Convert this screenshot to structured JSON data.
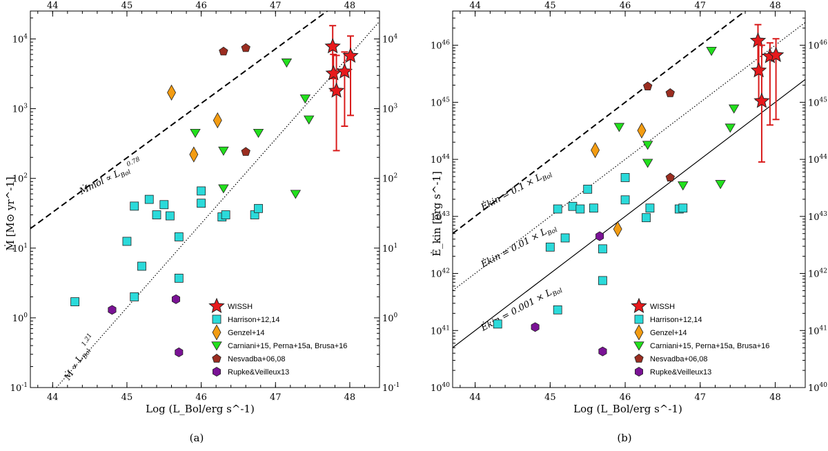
{
  "figure": {
    "caption_a": "(a)",
    "caption_b": "(b)"
  },
  "colors": {
    "wissh": "#e8191c",
    "harrison": "#2bdada",
    "genzel": "#f39c12",
    "carniani": "#22e01d",
    "nesvadba": "#9b2d20",
    "rupke": "#7a1295",
    "errorbar": "#d91b1b"
  },
  "chart_data": [
    {
      "type": "scatter",
      "panel": "a",
      "xlabel": "Log (L_Bol/erg s^-1)",
      "ylabel": "Ṁ [M⊙ yr^-1]",
      "xlim": [
        43.7,
        48.4
      ],
      "ylim_log10": [
        -1,
        4.4
      ],
      "yscale": "log",
      "xticks": [
        "44",
        "45",
        "46",
        "47",
        "48"
      ],
      "yticks": [
        "10^-1",
        "10^0",
        "10^1",
        "10^2",
        "10^3",
        "10^4"
      ],
      "lines": [
        {
          "name": "Ṁ_mol ∝ L_Bol^0.78",
          "style": "dashed",
          "x": [
            43.7,
            48.4
          ],
          "y_log": [
            1.28,
            4.95
          ]
        },
        {
          "name": "Ṁ ∝ L_Bol^1.21",
          "style": "dotted",
          "x": [
            44.05,
            48.4
          ],
          "y_log": [
            -1,
            4.25
          ]
        }
      ],
      "annotations": [
        {
          "text": "Ṁmol ∝ L",
          "sub": "Bol",
          "sup": "0.78"
        },
        {
          "text": "Ṁ ∝ L",
          "sub": "Bol",
          "sup": "1.21"
        }
      ],
      "series": [
        {
          "name": "WISSH",
          "marker": "star",
          "points": [
            [
              47.77,
              7800
            ],
            [
              47.78,
              3200
            ],
            [
              47.82,
              1800
            ],
            [
              47.93,
              3400
            ],
            [
              48.01,
              5700
            ]
          ],
          "yerr": [
            [
              2700,
              15500
            ],
            [
              1800,
              6000
            ],
            [
              250,
              5800
            ],
            [
              560,
              6500
            ],
            [
              800,
              11000
            ]
          ]
        },
        {
          "name": "Harrison+12,14",
          "marker": "square",
          "points": [
            [
              44.3,
              1.7
            ],
            [
              45.0,
              12.5
            ],
            [
              45.1,
              40
            ],
            [
              45.1,
              2.0
            ],
            [
              45.2,
              5.5
            ],
            [
              45.3,
              50
            ],
            [
              45.4,
              30
            ],
            [
              45.5,
              42
            ],
            [
              45.58,
              29
            ],
            [
              45.7,
              14.5
            ],
            [
              45.7,
              3.7
            ],
            [
              46.0,
              66
            ],
            [
              46.0,
              44
            ],
            [
              46.28,
              28
            ],
            [
              46.33,
              30
            ],
            [
              46.72,
              30
            ],
            [
              46.77,
              37
            ]
          ]
        },
        {
          "name": "Genzel+14",
          "marker": "diamond",
          "points": [
            [
              45.6,
              1700
            ],
            [
              45.9,
              220
            ],
            [
              46.22,
              680
            ]
          ]
        },
        {
          "name": "Carniani+15, Perna+15a, Brusa+16",
          "marker": "triangle-down",
          "points": [
            [
              45.92,
              450
            ],
            [
              46.3,
              250
            ],
            [
              46.3,
              72
            ],
            [
              46.77,
              450
            ],
            [
              47.15,
              4600
            ],
            [
              47.27,
              60
            ],
            [
              47.4,
              1400
            ],
            [
              47.45,
              700
            ]
          ]
        },
        {
          "name": "Nesvadba+06,08",
          "marker": "pentagon",
          "points": [
            [
              46.3,
              6600
            ],
            [
              46.6,
              7400
            ],
            [
              46.6,
              240
            ]
          ]
        },
        {
          "name": "Rupke&Veilleux13",
          "marker": "hexagon",
          "points": [
            [
              44.8,
              1.3
            ],
            [
              45.66,
              1.85
            ],
            [
              45.7,
              0.32
            ]
          ]
        }
      ]
    },
    {
      "type": "scatter",
      "panel": "b",
      "xlabel": "Log (L_Bol/erg s^-1)",
      "ylabel": "Ė_kin [erg s^-1]",
      "xlim": [
        43.7,
        48.4
      ],
      "ylim_log10": [
        40,
        46.6
      ],
      "yscale": "log",
      "xticks": [
        "44",
        "45",
        "46",
        "47",
        "48"
      ],
      "yticks": [
        "10^40",
        "10^41",
        "10^42",
        "10^43",
        "10^44",
        "10^45",
        "10^46"
      ],
      "lines": [
        {
          "name": "Ė_kin = 0.1 × L_Bol",
          "style": "dashed",
          "x": [
            43.7,
            48.4
          ],
          "y_log": [
            42.7,
            47.4
          ]
        },
        {
          "name": "Ė_kin = 0.01 × L_Bol",
          "style": "dotted",
          "x": [
            43.7,
            48.4
          ],
          "y_log": [
            41.7,
            46.4
          ]
        },
        {
          "name": "Ė_kin = 0.001 × L_Bol",
          "style": "solid",
          "x": [
            43.7,
            48.4
          ],
          "y_log": [
            40.7,
            45.4
          ]
        }
      ],
      "annotations": [
        {
          "text": "Ėkin = 0.1 × L",
          "sub": "Bol"
        },
        {
          "text": "Ėkin = 0.01 × L",
          "sub": "Bol"
        },
        {
          "text": "Ėkin = 0.001 × L",
          "sub": "Bol"
        }
      ],
      "series": [
        {
          "name": "WISSH",
          "marker": "star",
          "points": [
            [
              47.77,
              1.2e+46
            ],
            [
              47.78,
              3.6e+45
            ],
            [
              47.82,
              1.05e+45
            ],
            [
              47.93,
              6.4e+45
            ],
            [
              48.01,
              6.7e+45
            ]
          ],
          "yerr": [
            [
              3.4e+45,
              2.3e+46
            ],
            [
              1.1e+45,
              1.2e+46
            ],
            [
              9e+43,
              1e+46
            ],
            [
              4e+44,
              1.1e+46
            ],
            [
              5e+44,
              1.3e+46
            ]
          ]
        },
        {
          "name": "Harrison+12,14",
          "marker": "square",
          "points": [
            [
              44.3,
              1.3e+41
            ],
            [
              45.0,
              2.9e+42
            ],
            [
              45.1,
              1.35e+43
            ],
            [
              45.1,
              2.3e+41
            ],
            [
              45.2,
              4.2e+42
            ],
            [
              45.3,
              1.5e+43
            ],
            [
              45.4,
              1.35e+43
            ],
            [
              45.5,
              3e+43
            ],
            [
              45.58,
              1.4e+43
            ],
            [
              45.7,
              2.7e+42
            ],
            [
              45.7,
              7.5e+41
            ],
            [
              46.0,
              4.8e+43
            ],
            [
              46.0,
              1.95e+43
            ],
            [
              46.28,
              9.5e+42
            ],
            [
              46.33,
              1.4e+43
            ],
            [
              46.72,
              1.35e+43
            ],
            [
              46.77,
              1.4e+43
            ]
          ]
        },
        {
          "name": "Genzel+14",
          "marker": "diamond",
          "points": [
            [
              45.6,
              1.45e+44
            ],
            [
              45.9,
              6e+42
            ],
            [
              46.22,
              3.2e+44
            ]
          ]
        },
        {
          "name": "Carniani+15, Perna+15a, Brusa+16",
          "marker": "triangle-down",
          "points": [
            [
              45.92,
              3.7e+44
            ],
            [
              46.3,
              1.8e+44
            ],
            [
              46.3,
              8.7e+43
            ],
            [
              46.77,
              3.5e+43
            ],
            [
              47.15,
              8e+45
            ],
            [
              47.27,
              3.7e+43
            ],
            [
              47.4,
              3.6e+44
            ],
            [
              47.45,
              7.8e+44
            ]
          ]
        },
        {
          "name": "Nesvadba+06,08",
          "marker": "pentagon",
          "points": [
            [
              46.3,
              1.9e+45
            ],
            [
              46.6,
              1.45e+45
            ],
            [
              46.6,
              4.8e+43
            ]
          ]
        },
        {
          "name": "Rupke&Veilleux13",
          "marker": "hexagon",
          "points": [
            [
              44.8,
              1.15e+41
            ],
            [
              45.66,
              4.5e+42
            ],
            [
              45.7,
              4.3e+40
            ]
          ]
        }
      ]
    }
  ]
}
